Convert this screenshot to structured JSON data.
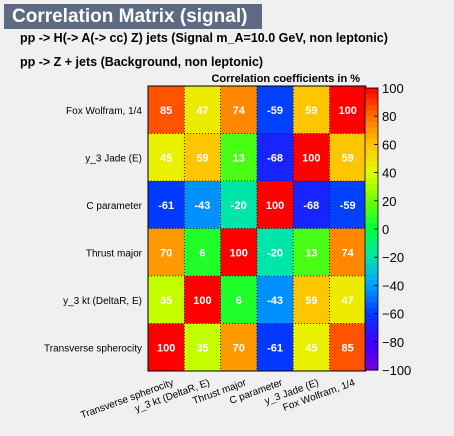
{
  "header": {
    "title": "Correlation Matrix (signal)",
    "subtitle_1": "pp -> H(-> A(-> cc)  Z) jets (Signal m_A=10.0 GeV, non leptonic)",
    "subtitle_2": "pp -> Z + jets (Background, non leptonic)"
  },
  "chart_data": {
    "type": "heatmap",
    "title": "Correlation coefficients in %",
    "variables": [
      "Transverse spherocity",
      "y_3 kt (DeltaR, E)",
      "Thrust major",
      "C parameter",
      "y_3 Jade (E)",
      "Fox Wolfram, 1/4"
    ],
    "y_labels_top_to_bottom": [
      "Fox Wolfram, 1/4",
      "y_3 Jade (E)",
      "C parameter",
      "Thrust major",
      "y_3 kt (DeltaR, E)",
      "Transverse spherocity"
    ],
    "x_labels_left_to_right": [
      "Transverse spherocity",
      "y_3 kt (DeltaR, E)",
      "Thrust major",
      "C parameter",
      "y_3 Jade (E)",
      "Fox Wolfram, 1/4"
    ],
    "values_rows_top_to_bottom": [
      [
        85,
        47,
        74,
        -59,
        59,
        100
      ],
      [
        45,
        59,
        13,
        -68,
        100,
        59
      ],
      [
        -61,
        -43,
        -20,
        100,
        -68,
        -59
      ],
      [
        70,
        6,
        100,
        -20,
        13,
        74
      ],
      [
        35,
        100,
        6,
        -43,
        59,
        47
      ],
      [
        100,
        35,
        70,
        -61,
        45,
        85
      ]
    ],
    "zlim": [
      -100,
      100
    ],
    "colorbar_ticks": [
      100,
      80,
      60,
      40,
      20,
      0,
      -20,
      -40,
      -60,
      -80,
      -100
    ],
    "colorbar_tick_labels": [
      "100",
      "80",
      "60",
      "40",
      "20",
      "0",
      "−20",
      "−40",
      "−60",
      "−80",
      "−100"
    ]
  }
}
